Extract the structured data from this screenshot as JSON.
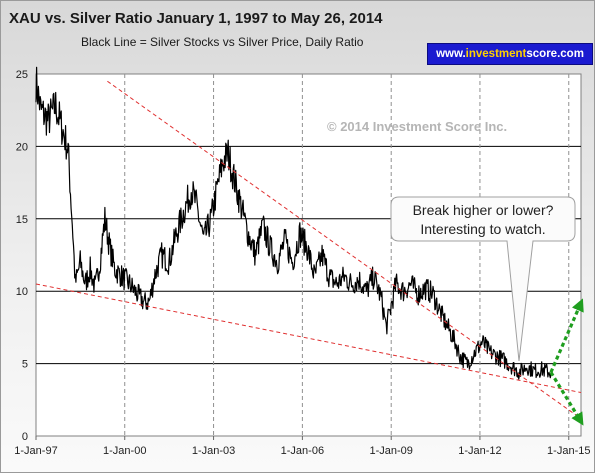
{
  "chart_data": {
    "type": "line",
    "title": "XAU vs. Silver Ratio January 1, 1997 to May 26, 2014",
    "subtitle": "Black Line = Silver Stocks vs Silver Price, Daily Ratio",
    "xlabel": "",
    "ylabel": "",
    "x_ticks": [
      "1-Jan-97",
      "1-Jan-00",
      "1-Jan-03",
      "1-Jan-06",
      "1-Jan-09",
      "1-Jan-12",
      "1-Jan-15"
    ],
    "y_ticks": [
      "0",
      "5",
      "10",
      "15",
      "20",
      "25"
    ],
    "xlim": [
      "1997-01-01",
      "2015-06-01"
    ],
    "ylim": [
      0,
      25
    ],
    "grid": {
      "horizontal": true,
      "vertical": "dashed"
    },
    "series": [
      {
        "color": "#000000",
        "points": [
          [
            "1997-01-01",
            24.5
          ],
          [
            "1997-03-01",
            22.5
          ],
          [
            "1997-06-01",
            21.8
          ],
          [
            "1997-09-01",
            22.8
          ],
          [
            "1997-12-01",
            21.0
          ],
          [
            "1998-02-01",
            19.8
          ],
          [
            "1998-04-01",
            14.0
          ],
          [
            "1998-05-01",
            10.5
          ],
          [
            "1998-07-01",
            12.0
          ],
          [
            "1998-09-01",
            10.5
          ],
          [
            "1998-11-01",
            11.5
          ],
          [
            "1999-01-01",
            10.2
          ],
          [
            "1999-03-01",
            12.0
          ],
          [
            "1999-05-01",
            15.0
          ],
          [
            "1999-07-01",
            13.0
          ],
          [
            "1999-09-01",
            11.5
          ],
          [
            "1999-12-01",
            11.0
          ],
          [
            "2000-03-01",
            10.5
          ],
          [
            "2000-06-01",
            9.8
          ],
          [
            "2000-09-01",
            9.2
          ],
          [
            "2000-11-01",
            9.3
          ],
          [
            "2001-01-01",
            11.0
          ],
          [
            "2001-04-01",
            12.5
          ],
          [
            "2001-07-01",
            12.0
          ],
          [
            "2001-10-01",
            14.0
          ],
          [
            "2002-01-01",
            15.5
          ],
          [
            "2002-04-01",
            17.0
          ],
          [
            "2002-06-01",
            16.0
          ],
          [
            "2002-09-01",
            13.5
          ],
          [
            "2002-12-01",
            15.0
          ],
          [
            "2003-03-01",
            17.5
          ],
          [
            "2003-05-01",
            19.0
          ],
          [
            "2003-07-01",
            19.5
          ],
          [
            "2003-09-01",
            18.0
          ],
          [
            "2003-12-01",
            16.0
          ],
          [
            "2004-03-01",
            14.0
          ],
          [
            "2004-06-01",
            12.5
          ],
          [
            "2004-09-01",
            14.5
          ],
          [
            "2004-12-01",
            13.0
          ],
          [
            "2005-03-01",
            12.0
          ],
          [
            "2005-06-01",
            13.5
          ],
          [
            "2005-09-01",
            12.0
          ],
          [
            "2005-12-01",
            14.0
          ],
          [
            "2006-03-01",
            13.0
          ],
          [
            "2006-06-01",
            11.0
          ],
          [
            "2006-09-01",
            12.5
          ],
          [
            "2006-12-01",
            11.0
          ],
          [
            "2007-03-01",
            10.5
          ],
          [
            "2007-06-01",
            11.0
          ],
          [
            "2007-09-01",
            10.5
          ],
          [
            "2007-12-01",
            10.8
          ],
          [
            "2008-03-01",
            10.0
          ],
          [
            "2008-06-01",
            11.0
          ],
          [
            "2008-09-01",
            9.5
          ],
          [
            "2008-11-01",
            7.5
          ],
          [
            "2009-01-01",
            9.0
          ],
          [
            "2009-03-01",
            10.5
          ],
          [
            "2009-06-01",
            10.0
          ],
          [
            "2009-09-01",
            10.5
          ],
          [
            "2009-12-01",
            9.8
          ],
          [
            "2010-03-01",
            10.2
          ],
          [
            "2010-06-01",
            9.8
          ],
          [
            "2010-09-01",
            8.5
          ],
          [
            "2010-12-01",
            7.5
          ],
          [
            "2011-03-01",
            6.5
          ],
          [
            "2011-05-01",
            5.5
          ],
          [
            "2011-08-01",
            5.0
          ],
          [
            "2011-11-01",
            5.8
          ],
          [
            "2012-02-01",
            6.5
          ],
          [
            "2012-05-01",
            5.8
          ],
          [
            "2012-08-01",
            5.5
          ],
          [
            "2012-11-01",
            5.2
          ],
          [
            "2013-02-01",
            4.8
          ],
          [
            "2013-05-01",
            4.4
          ],
          [
            "2013-08-01",
            4.8
          ],
          [
            "2013-11-01",
            4.5
          ],
          [
            "2014-02-01",
            4.6
          ],
          [
            "2014-05-26",
            4.4
          ]
        ]
      },
      {
        "color": "#e03030",
        "dashed": true,
        "points": [
          [
            "1997-01-01",
            10.5
          ],
          [
            "2015-06-01",
            3.0
          ]
        ]
      },
      {
        "color": "#e03030",
        "dashed": true,
        "points": [
          [
            "1999-06-01",
            24.5
          ],
          [
            "2015-06-01",
            1.2
          ]
        ]
      },
      {
        "color": "#1f9e1f",
        "dashed": true,
        "arrow": true,
        "points": [
          [
            "2014-05-26",
            4.4
          ],
          [
            "2015-06-01",
            9.2
          ]
        ]
      },
      {
        "color": "#1f9e1f",
        "dashed": true,
        "arrow": true,
        "points": [
          [
            "2014-05-26",
            4.4
          ],
          [
            "2015-06-01",
            1.0
          ]
        ]
      }
    ],
    "annotations": [
      {
        "text": "© 2014 Investment Score Inc."
      },
      {
        "lines": [
          "Break higher or lower?",
          "Interesting to watch."
        ],
        "pointer_date": "2014-05-26",
        "pointer_value": 4.6
      }
    ]
  },
  "badge": {
    "prefix": "www.",
    "accent": "investment",
    "suffix": "score.com"
  },
  "colors": {
    "badge_bg": "#1a1ad0",
    "badge_accent": "#ffd200",
    "trend": "#e03030",
    "arrow": "#1f9e1f"
  }
}
